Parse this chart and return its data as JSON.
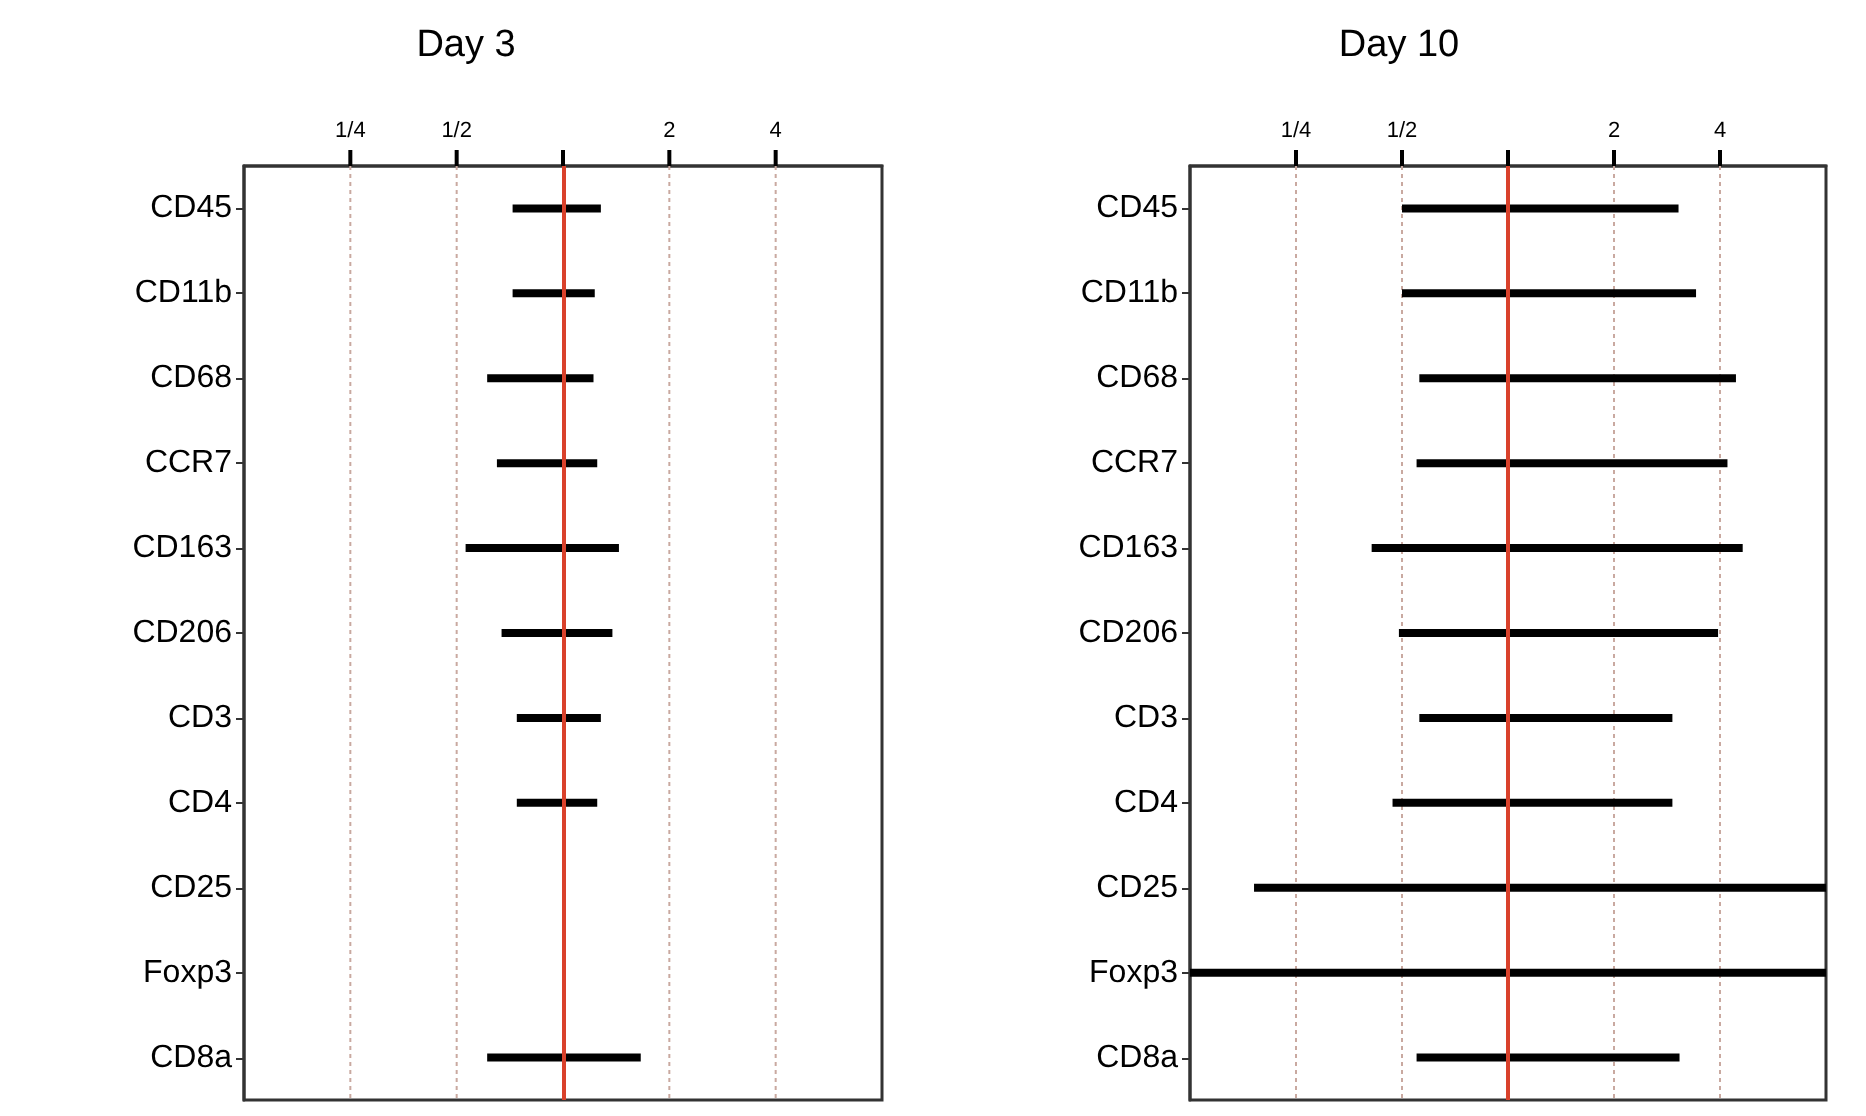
{
  "chart_data": [
    {
      "type": "bar",
      "title": "Day 3",
      "orientation": "horizontal",
      "log": "x",
      "grid": "x",
      "color": "#000000",
      "categories": [
        "CD45",
        "CD11b",
        "CD68",
        "CCR7",
        "CD163",
        "CD206",
        "CD3",
        "CD4",
        "CD25",
        "Foxp3",
        "CD8a"
      ],
      "base": [
        0.72,
        0.72,
        0.61,
        0.65,
        0.53,
        0.67,
        0.74,
        0.74,
        null,
        null,
        0.61
      ],
      "values": [
        0.56,
        0.51,
        0.61,
        0.6,
        0.91,
        0.71,
        0.54,
        0.51,
        null,
        null,
        1.05
      ],
      "xlim": [
        0.125,
        8
      ],
      "xticks": [
        {
          "value": 0.25,
          "label": "1/4"
        },
        {
          "value": 0.5,
          "label": "1/2"
        },
        {
          "value": 1,
          "label": null
        },
        {
          "value": 2,
          "label": "2"
        },
        {
          "value": 4,
          "label": "4"
        }
      ],
      "ref_lines": [
        {
          "axis": "x",
          "value": 1,
          "color": "#d9412b"
        }
      ]
    },
    {
      "type": "bar",
      "title": "Day 10",
      "orientation": "horizontal",
      "log": "x",
      "grid": "x",
      "color": "#000000",
      "categories": [
        "CD45",
        "CD11b",
        "CD68",
        "CCR7",
        "CD163",
        "CD206",
        "CD3",
        "CD4",
        "CD25",
        "Foxp3",
        "CD8a"
      ],
      "base": [
        0.5,
        0.5,
        0.56,
        0.55,
        0.41,
        0.49,
        0.56,
        0.47,
        0.19,
        0.125,
        0.55
      ],
      "values": [
        2.55,
        2.92,
        3.88,
        3.65,
        4.23,
        3.46,
        2.37,
        2.46,
        7.81,
        7.875,
        2.52
      ],
      "xlim": [
        0.125,
        8
      ],
      "xticks": [
        {
          "value": 0.25,
          "label": "1/4"
        },
        {
          "value": 0.5,
          "label": "1/2"
        },
        {
          "value": 1,
          "label": null
        },
        {
          "value": 2,
          "label": "2"
        },
        {
          "value": 4,
          "label": "4"
        }
      ],
      "ref_lines": [
        {
          "axis": "x",
          "value": 1,
          "color": "#d9412b"
        }
      ]
    }
  ]
}
